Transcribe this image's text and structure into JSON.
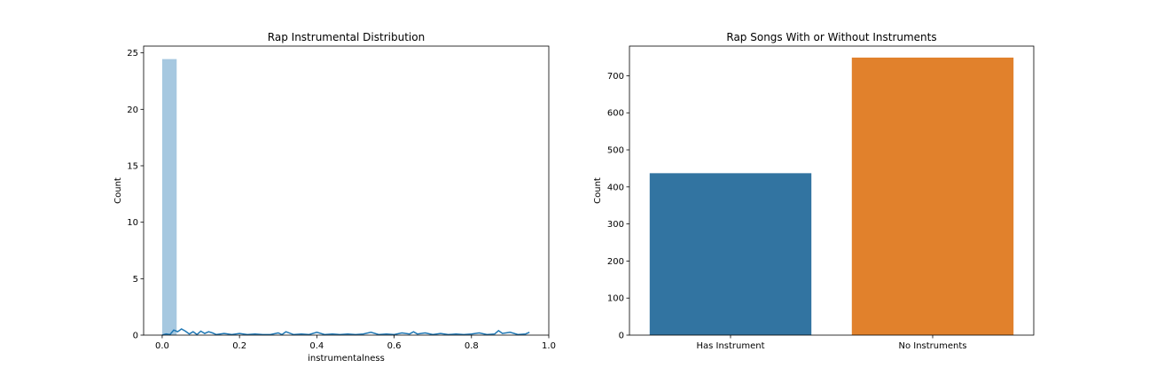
{
  "chart_data": [
    {
      "type": "bar",
      "subtype": "histogram-with-kde",
      "title": "Rap Instrumental Distribution",
      "xlabel": "instrumentalness",
      "ylabel": "Count",
      "xlim": [
        -0.048,
        1.0
      ],
      "ylim": [
        0,
        25.6
      ],
      "xticks": [
        "0.0",
        "0.2",
        "0.4",
        "0.6",
        "0.8",
        "1.0"
      ],
      "yticks": [
        "0",
        "5",
        "10",
        "15",
        "20",
        "25"
      ],
      "bins": [
        {
          "x0": 0.0,
          "x1": 0.0375,
          "value": 24.45
        }
      ],
      "kde": {
        "x": [
          0.0,
          0.01,
          0.02,
          0.03,
          0.04,
          0.05,
          0.06,
          0.07,
          0.08,
          0.09,
          0.1,
          0.11,
          0.12,
          0.13,
          0.14,
          0.16,
          0.18,
          0.2,
          0.22,
          0.24,
          0.26,
          0.28,
          0.3,
          0.31,
          0.32,
          0.34,
          0.36,
          0.38,
          0.4,
          0.42,
          0.44,
          0.46,
          0.48,
          0.5,
          0.52,
          0.54,
          0.56,
          0.58,
          0.6,
          0.62,
          0.64,
          0.65,
          0.66,
          0.68,
          0.7,
          0.72,
          0.74,
          0.76,
          0.78,
          0.8,
          0.82,
          0.84,
          0.86,
          0.87,
          0.88,
          0.9,
          0.92,
          0.94,
          0.95
        ],
        "y": [
          0.0,
          0.1,
          0.05,
          0.45,
          0.3,
          0.55,
          0.35,
          0.1,
          0.3,
          0.05,
          0.35,
          0.15,
          0.3,
          0.2,
          0.05,
          0.15,
          0.05,
          0.15,
          0.05,
          0.1,
          0.05,
          0.05,
          0.2,
          0.05,
          0.3,
          0.05,
          0.1,
          0.05,
          0.25,
          0.05,
          0.1,
          0.05,
          0.1,
          0.05,
          0.1,
          0.25,
          0.05,
          0.1,
          0.05,
          0.2,
          0.1,
          0.3,
          0.1,
          0.2,
          0.05,
          0.15,
          0.05,
          0.1,
          0.05,
          0.1,
          0.2,
          0.05,
          0.1,
          0.4,
          0.15,
          0.25,
          0.05,
          0.1,
          0.25
        ]
      },
      "colors": {
        "bars": "#a6c8e0",
        "kde": "#1f77b4"
      },
      "grid": false,
      "legend": "none"
    },
    {
      "type": "bar",
      "title": "Rap Songs With or Without Instruments",
      "xlabel": "",
      "ylabel": "Count",
      "ylim": [
        0,
        780
      ],
      "yticks": [
        "0",
        "100",
        "200",
        "300",
        "400",
        "500",
        "600",
        "700"
      ],
      "categories": [
        "Has Instrument",
        "No Instruments"
      ],
      "values": [
        437,
        749
      ],
      "colors": [
        "#3274a1",
        "#e1812c"
      ],
      "grid": false,
      "legend": "none"
    }
  ]
}
